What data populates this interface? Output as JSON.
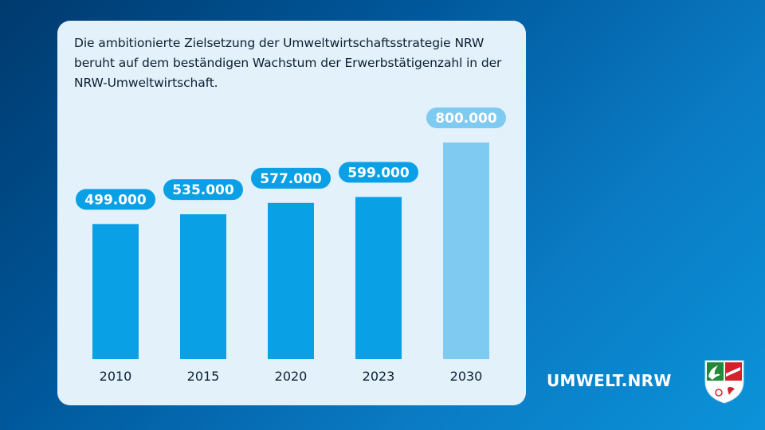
{
  "headline": "Die ambitionierte Zielsetzung der Umweltwirtschaftsstrategie NRW beruht auf dem beständigen Wachstum der Erwerbstätigenzahl in der NRW-Umweltwirtschaft.",
  "brand": "UMWELT.NRW",
  "crest_icon": "nrw-coat-of-arms-icon",
  "colors": {
    "bar": "#0aa0e6",
    "bar_target": "#7fcaf0",
    "label_pill": "#0aa0e6",
    "label_pill_target": "#7fcaf0"
  },
  "chart_data": {
    "type": "bar",
    "categories": [
      "2010",
      "2015",
      "2020",
      "2023",
      "2030"
    ],
    "values": [
      499000,
      535000,
      577000,
      599000,
      800000
    ],
    "value_labels": [
      "499.000",
      "535.000",
      "577.000",
      "599.000",
      "800.000"
    ],
    "highlighted_categories": [
      "2030"
    ],
    "ylim": [
      0,
      1000000
    ],
    "grid": false,
    "legend": "none"
  }
}
